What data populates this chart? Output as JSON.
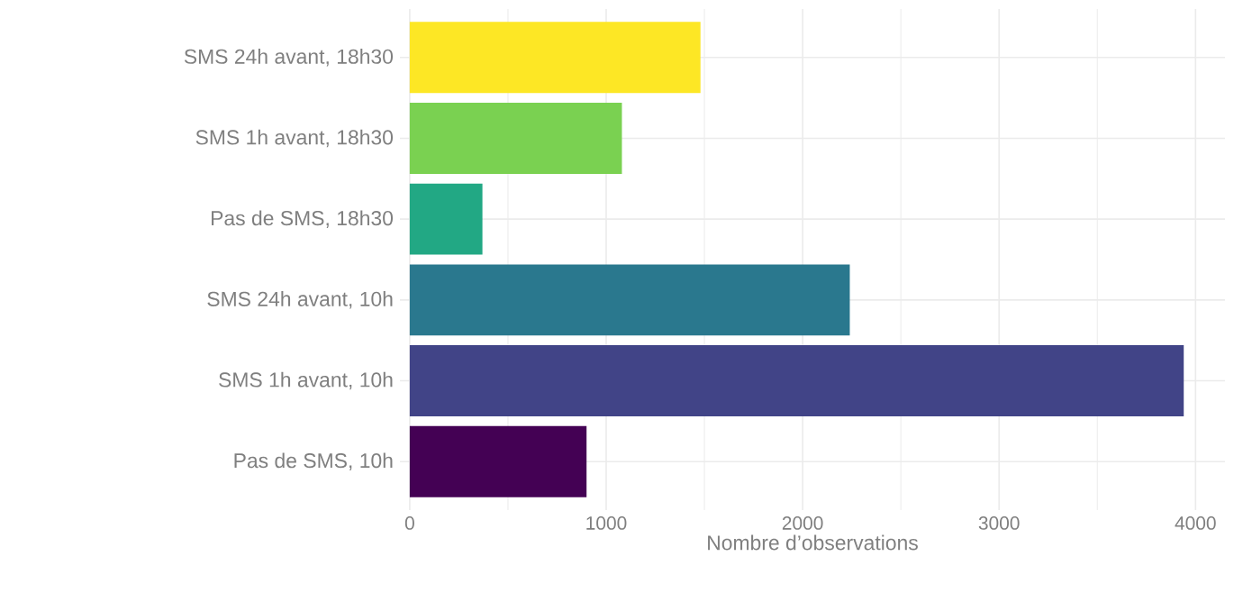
{
  "chart_data": {
    "type": "bar",
    "orientation": "horizontal",
    "xlabel": "Nombre d’observations",
    "categories": [
      "SMS 24h avant, 18h30",
      "SMS 1h avant, 18h30",
      "Pas de SMS, 18h30",
      "SMS 24h avant, 10h",
      "SMS 1h avant, 10h",
      "Pas de SMS, 10h"
    ],
    "values": [
      1480,
      1080,
      370,
      2240,
      3940,
      900
    ],
    "colors": [
      "#fde725",
      "#7ad151",
      "#22a884",
      "#2a788e",
      "#414487",
      "#440154"
    ],
    "xlim": [
      -50,
      4150
    ],
    "xticks": [
      0,
      1000,
      2000,
      3000,
      4000
    ],
    "grid": true
  }
}
